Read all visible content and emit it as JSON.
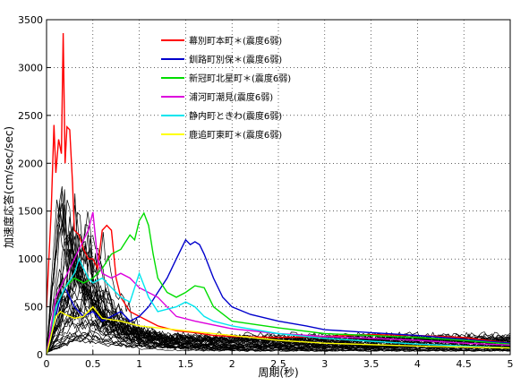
{
  "chart_data": {
    "type": "line",
    "xlabel": "周期(秒)",
    "ylabel": "加速度応答(cm/sec/sec)",
    "xlim": [
      0,
      5
    ],
    "ylim": [
      0,
      3500
    ],
    "xticks": [
      0,
      0.5,
      1,
      1.5,
      2,
      2.5,
      3,
      3.5,
      4,
      4.5,
      5
    ],
    "xtick_labels": [
      "0",
      "0.5",
      "1",
      "1.5",
      "2",
      "2.5",
      "3",
      "3.5",
      "4",
      "4.5",
      "5"
    ],
    "yticks": [
      0,
      500,
      1000,
      1500,
      2000,
      2500,
      3000,
      3500
    ],
    "ytick_labels": [
      "0",
      "500",
      "1000",
      "1500",
      "2000",
      "2500",
      "3000",
      "3500"
    ],
    "grid": true,
    "grid_style": "dotted",
    "legend_position": "top-center",
    "background_series_color": "#000000",
    "background_series_count": 40,
    "series": [
      {
        "name": "幕別町本町＊(震度6弱)",
        "color": "#ff0000",
        "x": [
          0,
          0.05,
          0.08,
          0.1,
          0.13,
          0.16,
          0.18,
          0.2,
          0.22,
          0.25,
          0.28,
          0.3,
          0.35,
          0.4,
          0.45,
          0.5,
          0.55,
          0.6,
          0.65,
          0.7,
          0.75,
          0.8,
          0.9,
          1.0,
          1.1,
          1.2,
          1.4,
          1.6,
          1.8,
          2.0,
          2.5,
          3.0,
          3.5,
          4.0,
          4.5,
          5.0
        ],
        "y": [
          500,
          1500,
          2400,
          1900,
          2250,
          2100,
          3360,
          2000,
          2380,
          2350,
          1800,
          1300,
          1250,
          1100,
          1000,
          1000,
          900,
          1300,
          1350,
          1300,
          800,
          600,
          450,
          400,
          350,
          300,
          250,
          230,
          200,
          190,
          180,
          190,
          210,
          200,
          180,
          120
        ]
      },
      {
        "name": "釧路町別保＊(震度6弱)",
        "color": "#0000cc",
        "x": [
          0,
          0.05,
          0.1,
          0.15,
          0.2,
          0.3,
          0.4,
          0.5,
          0.6,
          0.7,
          0.8,
          0.9,
          1.0,
          1.1,
          1.2,
          1.3,
          1.4,
          1.5,
          1.55,
          1.6,
          1.65,
          1.7,
          1.8,
          1.9,
          2.0,
          2.2,
          2.5,
          2.8,
          3.0,
          3.5,
          4.0,
          4.5,
          5.0
        ],
        "y": [
          0,
          200,
          400,
          600,
          700,
          500,
          400,
          450,
          350,
          400,
          450,
          350,
          400,
          500,
          650,
          800,
          1000,
          1200,
          1150,
          1180,
          1150,
          1050,
          800,
          600,
          500,
          420,
          350,
          300,
          260,
          230,
          200,
          160,
          120
        ]
      },
      {
        "name": "新冠町北星町＊(震度6弱)",
        "color": "#00dd00",
        "x": [
          0,
          0.05,
          0.1,
          0.2,
          0.3,
          0.4,
          0.5,
          0.6,
          0.7,
          0.8,
          0.9,
          0.95,
          1.0,
          1.05,
          1.1,
          1.15,
          1.2,
          1.3,
          1.4,
          1.5,
          1.6,
          1.7,
          1.8,
          2.0,
          2.5,
          3.0,
          3.5,
          4.0,
          4.5,
          5.0
        ],
        "y": [
          0,
          300,
          500,
          700,
          800,
          750,
          800,
          900,
          1050,
          1100,
          1250,
          1200,
          1400,
          1480,
          1350,
          1050,
          800,
          650,
          600,
          650,
          720,
          700,
          500,
          350,
          280,
          220,
          200,
          180,
          150,
          110
        ]
      },
      {
        "name": "浦河町潮見(震度6弱)",
        "color": "#dd00dd",
        "x": [
          0,
          0.05,
          0.1,
          0.15,
          0.2,
          0.3,
          0.35,
          0.4,
          0.45,
          0.5,
          0.55,
          0.6,
          0.7,
          0.8,
          0.9,
          1.0,
          1.2,
          1.4,
          1.6,
          2.0,
          2.5,
          3.0,
          3.5,
          4.0,
          4.5,
          5.0
        ],
        "y": [
          0,
          300,
          600,
          700,
          800,
          1000,
          1100,
          1200,
          1300,
          1490,
          1000,
          850,
          800,
          850,
          800,
          700,
          600,
          400,
          350,
          270,
          220,
          190,
          170,
          150,
          120,
          100
        ]
      },
      {
        "name": "静内町ときわ(震度6弱)",
        "color": "#00e5ee",
        "x": [
          0,
          0.05,
          0.1,
          0.2,
          0.3,
          0.35,
          0.4,
          0.45,
          0.5,
          0.6,
          0.7,
          0.8,
          0.9,
          1.0,
          1.1,
          1.2,
          1.4,
          1.5,
          1.6,
          1.7,
          1.8,
          2.0,
          2.5,
          3.0,
          3.5,
          4.0,
          4.5,
          5.0
        ],
        "y": [
          0,
          200,
          500,
          700,
          850,
          1000,
          900,
          800,
          750,
          800,
          700,
          600,
          550,
          850,
          600,
          450,
          500,
          550,
          500,
          400,
          350,
          300,
          220,
          170,
          140,
          110,
          90,
          70
        ]
      },
      {
        "name": "鹿追町東町＊(震度6弱)",
        "color": "#ffff00",
        "x": [
          0,
          0.05,
          0.1,
          0.15,
          0.2,
          0.3,
          0.4,
          0.5,
          0.6,
          0.8,
          1.0,
          1.2,
          1.5,
          2.0,
          2.5,
          3.0,
          4.0,
          5.0
        ],
        "y": [
          0,
          200,
          400,
          450,
          420,
          380,
          400,
          500,
          380,
          350,
          300,
          280,
          250,
          200,
          150,
          120,
          90,
          70
        ]
      }
    ]
  }
}
